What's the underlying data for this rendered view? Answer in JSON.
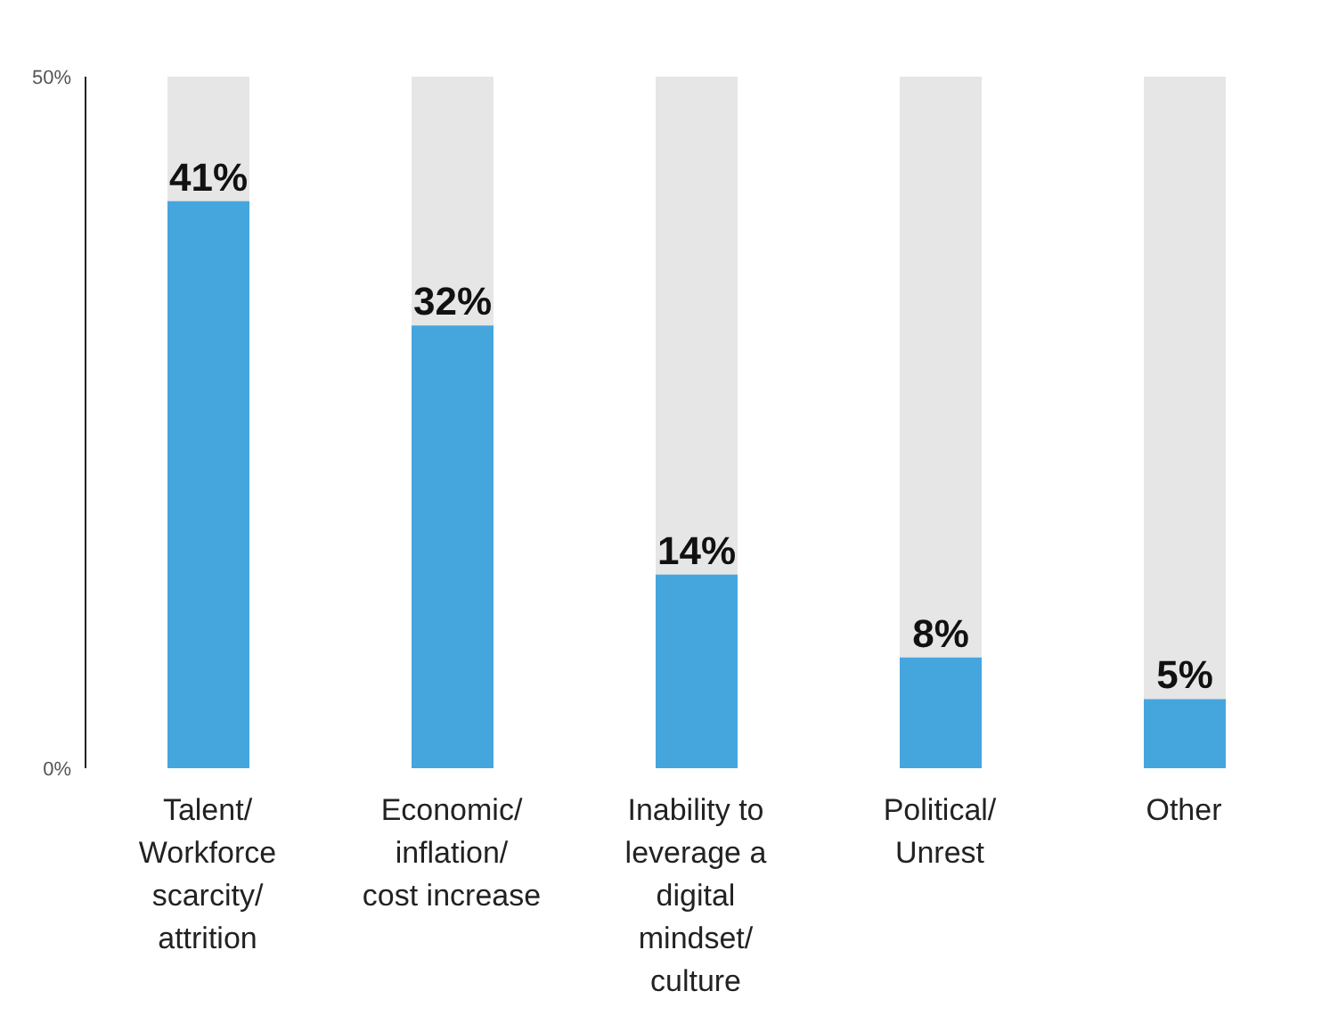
{
  "chart_data": {
    "type": "bar",
    "categories": [
      "Talent/ Workforce scarcity/ attrition",
      "Economic/ inflation/ cost increase",
      "Inability to leverage a digital mindset/ culture",
      "Political/ Unrest",
      "Other"
    ],
    "series": [
      {
        "color": "#45a6de",
        "values": [
          41,
          32,
          14,
          8,
          5
        ],
        "value_labels": [
          "41%",
          "32%",
          "14%",
          "8%",
          "5%"
        ]
      }
    ],
    "ylim": [
      0,
      50
    ],
    "yticks": [
      {
        "value": 0,
        "label": "0%"
      },
      {
        "value": 50,
        "label": "50%"
      }
    ],
    "grid": false,
    "legend": false
  }
}
